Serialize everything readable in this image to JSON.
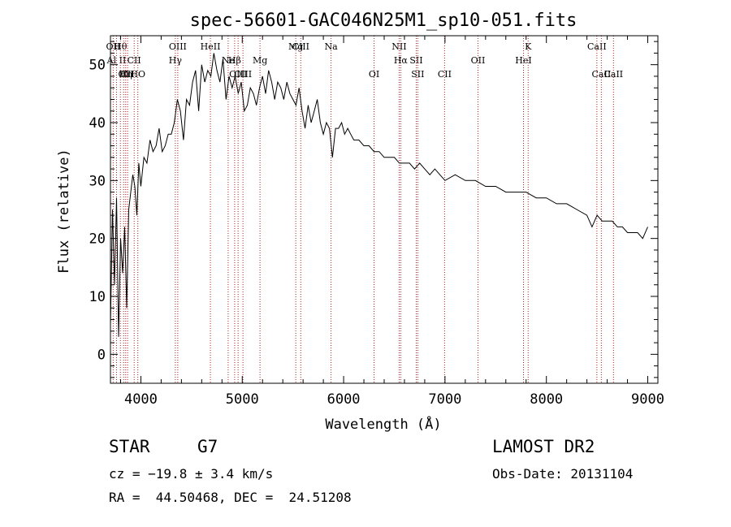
{
  "chart_data": {
    "type": "line",
    "title": "spec-56601-GAC046N25M1_sp10-051.fits",
    "xlabel": "Wavelength (Å)",
    "ylabel": "Flux (relative)",
    "xlim": [
      3700,
      9100
    ],
    "ylim": [
      -5,
      55
    ],
    "x_ticks": [
      4000,
      5000,
      6000,
      7000,
      8000,
      9000
    ],
    "y_ticks": [
      0,
      10,
      20,
      30,
      40,
      50
    ],
    "grid": false,
    "line_color": "#000000",
    "marker_color": "#aa2222",
    "series": [
      {
        "x": [
          3700,
          3720,
          3740,
          3760,
          3780,
          3800,
          3820,
          3840,
          3860,
          3880,
          3900,
          3920,
          3940,
          3960,
          3980,
          4000,
          4030,
          4060,
          4090,
          4120,
          4150,
          4180,
          4210,
          4240,
          4270,
          4300,
          4330,
          4360,
          4390,
          4420,
          4450,
          4480,
          4510,
          4540,
          4570,
          4600,
          4630,
          4660,
          4690,
          4720,
          4750,
          4780,
          4810,
          4840,
          4870,
          4900,
          4930,
          4960,
          4990,
          5020,
          5050,
          5080,
          5110,
          5140,
          5170,
          5200,
          5230,
          5260,
          5290,
          5320,
          5350,
          5380,
          5410,
          5440,
          5470,
          5500,
          5530,
          5560,
          5590,
          5620,
          5650,
          5680,
          5710,
          5740,
          5770,
          5800,
          5830,
          5860,
          5890,
          5920,
          5950,
          5980,
          6010,
          6040,
          6070,
          6100,
          6150,
          6200,
          6250,
          6300,
          6350,
          6400,
          6450,
          6500,
          6550,
          6600,
          6650,
          6700,
          6750,
          6800,
          6850,
          6900,
          6950,
          7000,
          7100,
          7200,
          7300,
          7400,
          7500,
          7600,
          7700,
          7800,
          7900,
          8000,
          8100,
          8200,
          8300,
          8400,
          8450,
          8500,
          8550,
          8600,
          8650,
          8700,
          8750,
          8800,
          8850,
          8900,
          8950,
          9000
        ],
        "y": [
          5,
          25,
          12,
          27,
          3,
          20,
          14,
          22,
          8,
          25,
          28,
          31,
          29,
          24,
          33,
          29,
          34,
          33,
          37,
          35,
          36,
          39,
          35,
          36,
          38,
          38,
          40,
          44,
          42,
          37,
          44,
          43,
          47,
          49,
          42,
          50,
          47,
          49,
          48,
          52,
          49,
          47,
          51,
          44,
          48,
          46,
          48,
          45,
          47,
          42,
          43,
          46,
          45,
          43,
          46,
          48,
          45,
          49,
          47,
          44,
          47,
          46,
          44,
          47,
          45,
          44,
          43,
          46,
          42,
          39,
          43,
          40,
          42,
          44,
          40,
          38,
          40,
          39,
          34,
          39,
          39,
          40,
          38,
          39,
          38,
          37,
          37,
          36,
          36,
          35,
          35,
          34,
          34,
          34,
          33,
          33,
          33,
          32,
          33,
          32,
          31,
          32,
          31,
          30,
          31,
          30,
          30,
          29,
          29,
          28,
          28,
          28,
          27,
          27,
          26,
          26,
          25,
          24,
          22,
          24,
          23,
          23,
          23,
          22,
          22,
          21,
          21,
          21,
          20,
          22
        ]
      }
    ],
    "line_markers": [
      {
        "x": 3727,
        "label": "OII",
        "row": 1
      },
      {
        "x": 3760,
        "label": "Al II",
        "row": 2
      },
      {
        "x": 3798,
        "label": "Hθ",
        "row": 1
      },
      {
        "x": 3830,
        "label": "OI",
        "row": 3
      },
      {
        "x": 3850,
        "label": "Hη",
        "row": 3
      },
      {
        "x": 3869,
        "label": "CII",
        "row": 3
      },
      {
        "x": 3934,
        "label": "CII",
        "row": 2
      },
      {
        "x": 3970,
        "label": "HO",
        "row": 3
      },
      {
        "x": 4340,
        "label": "Hγ",
        "row": 2
      },
      {
        "x": 4364,
        "label": "OIII",
        "row": 1
      },
      {
        "x": 4686,
        "label": "HeII",
        "row": 1
      },
      {
        "x": 4861,
        "label": "Ne",
        "row": 2
      },
      {
        "x": 4925,
        "label": "Hβ",
        "row": 2
      },
      {
        "x": 4959,
        "label": "OIII",
        "row": 3
      },
      {
        "x": 5007,
        "label": "OIII",
        "row": 3
      },
      {
        "x": 5175,
        "label": "Mg",
        "row": 2
      },
      {
        "x": 5528,
        "label": "Mg",
        "row": 1
      },
      {
        "x": 5577,
        "label": "CIII",
        "row": 1
      },
      {
        "x": 5876,
        "label": "Na",
        "row": 1
      },
      {
        "x": 6300,
        "label": "OI",
        "row": 3
      },
      {
        "x": 6548,
        "label": "NII",
        "row": 1
      },
      {
        "x": 6563,
        "label": "Hα",
        "row": 2
      },
      {
        "x": 6716,
        "label": "SII",
        "row": 2
      },
      {
        "x": 6731,
        "label": "SII",
        "row": 3
      },
      {
        "x": 6996,
        "label": "CII",
        "row": 3
      },
      {
        "x": 7325,
        "label": "OII",
        "row": 2
      },
      {
        "x": 7774,
        "label": "HeI",
        "row": 2
      },
      {
        "x": 7820,
        "label": "K",
        "row": 1
      },
      {
        "x": 8498,
        "label": "CaII",
        "row": 1
      },
      {
        "x": 8542,
        "label": "CaII",
        "row": 3
      },
      {
        "x": 8662,
        "label": "CaII",
        "row": 3
      }
    ]
  },
  "info": {
    "object_class": "STAR",
    "subclass": "G7",
    "survey": "LAMOST DR2",
    "redshift": "cz = −19.8 ± 3.4 km/s",
    "obs_date": "Obs-Date: 20131104",
    "coords": "RA =  44.50468, DEC =  24.51208"
  }
}
